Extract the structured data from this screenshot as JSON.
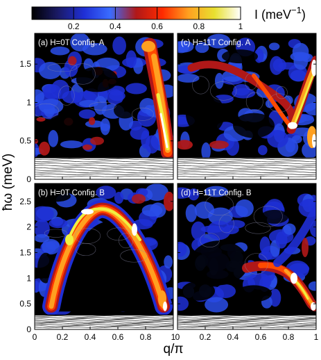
{
  "chart_data": {
    "type": "heatmap",
    "colorbar": {
      "label": "I (meV",
      "label_sup": "−1",
      "label_close": ")",
      "ticks": [
        "0.2",
        "0.4",
        "0.6",
        "0.8",
        "1"
      ],
      "tick_values": [
        0.2,
        0.4,
        0.6,
        0.8,
        1.0
      ],
      "range": [
        0,
        1
      ],
      "colormap": [
        "#000000",
        "#1a1a66",
        "#1f2fd6",
        "#3a6cff",
        "#b01818",
        "#ff2a00",
        "#ffa020",
        "#e8e030",
        "#ffffff"
      ]
    },
    "xlabel": "q/π",
    "ylabel": "ħω (meV)",
    "xticks": [
      "0",
      "0.2",
      "0.4",
      "0.6",
      "0.8",
      "1"
    ],
    "xtick_values": [
      0,
      0.2,
      0.4,
      0.6,
      0.8,
      1
    ],
    "xlim": [
      0,
      1
    ],
    "panels": [
      {
        "title": "(a) H=0T Config. A",
        "ylim": [
          0,
          1.9
        ],
        "yticks": [
          "0",
          "0.5",
          "1",
          "1.5"
        ],
        "ytick_values": [
          0,
          0.5,
          1,
          1.5
        ],
        "feature": "steep dispersion near q=0.95; intense at high energy"
      },
      {
        "title": "(c) H=11T Config. A",
        "ylim": [
          0,
          1.9
        ],
        "yticks": [],
        "ytick_values": [
          0,
          0.5,
          1,
          1.5
        ],
        "feature": "field-induced incommensurate modes; V-shaped branches"
      },
      {
        "title": "(b) H=0T Config. B",
        "ylim": [
          0,
          2.85
        ],
        "yticks": [
          "0",
          "0.5",
          "1",
          "1.5",
          "2",
          "2.5"
        ],
        "ytick_values": [
          0,
          0.5,
          1,
          1.5,
          2,
          2.5
        ],
        "feature": "dome-shaped dispersion peaking at q=0.5, ~2.3 meV"
      },
      {
        "title": "(d) H=11T Config. B",
        "ylim": [
          0,
          2.85
        ],
        "yticks": [],
        "ytick_values": [
          0,
          0.5,
          1,
          1.5,
          2,
          2.5
        ],
        "feature": "low-energy branch rising toward q=1"
      }
    ],
    "elastic_cutoff_meV": 0.28
  }
}
